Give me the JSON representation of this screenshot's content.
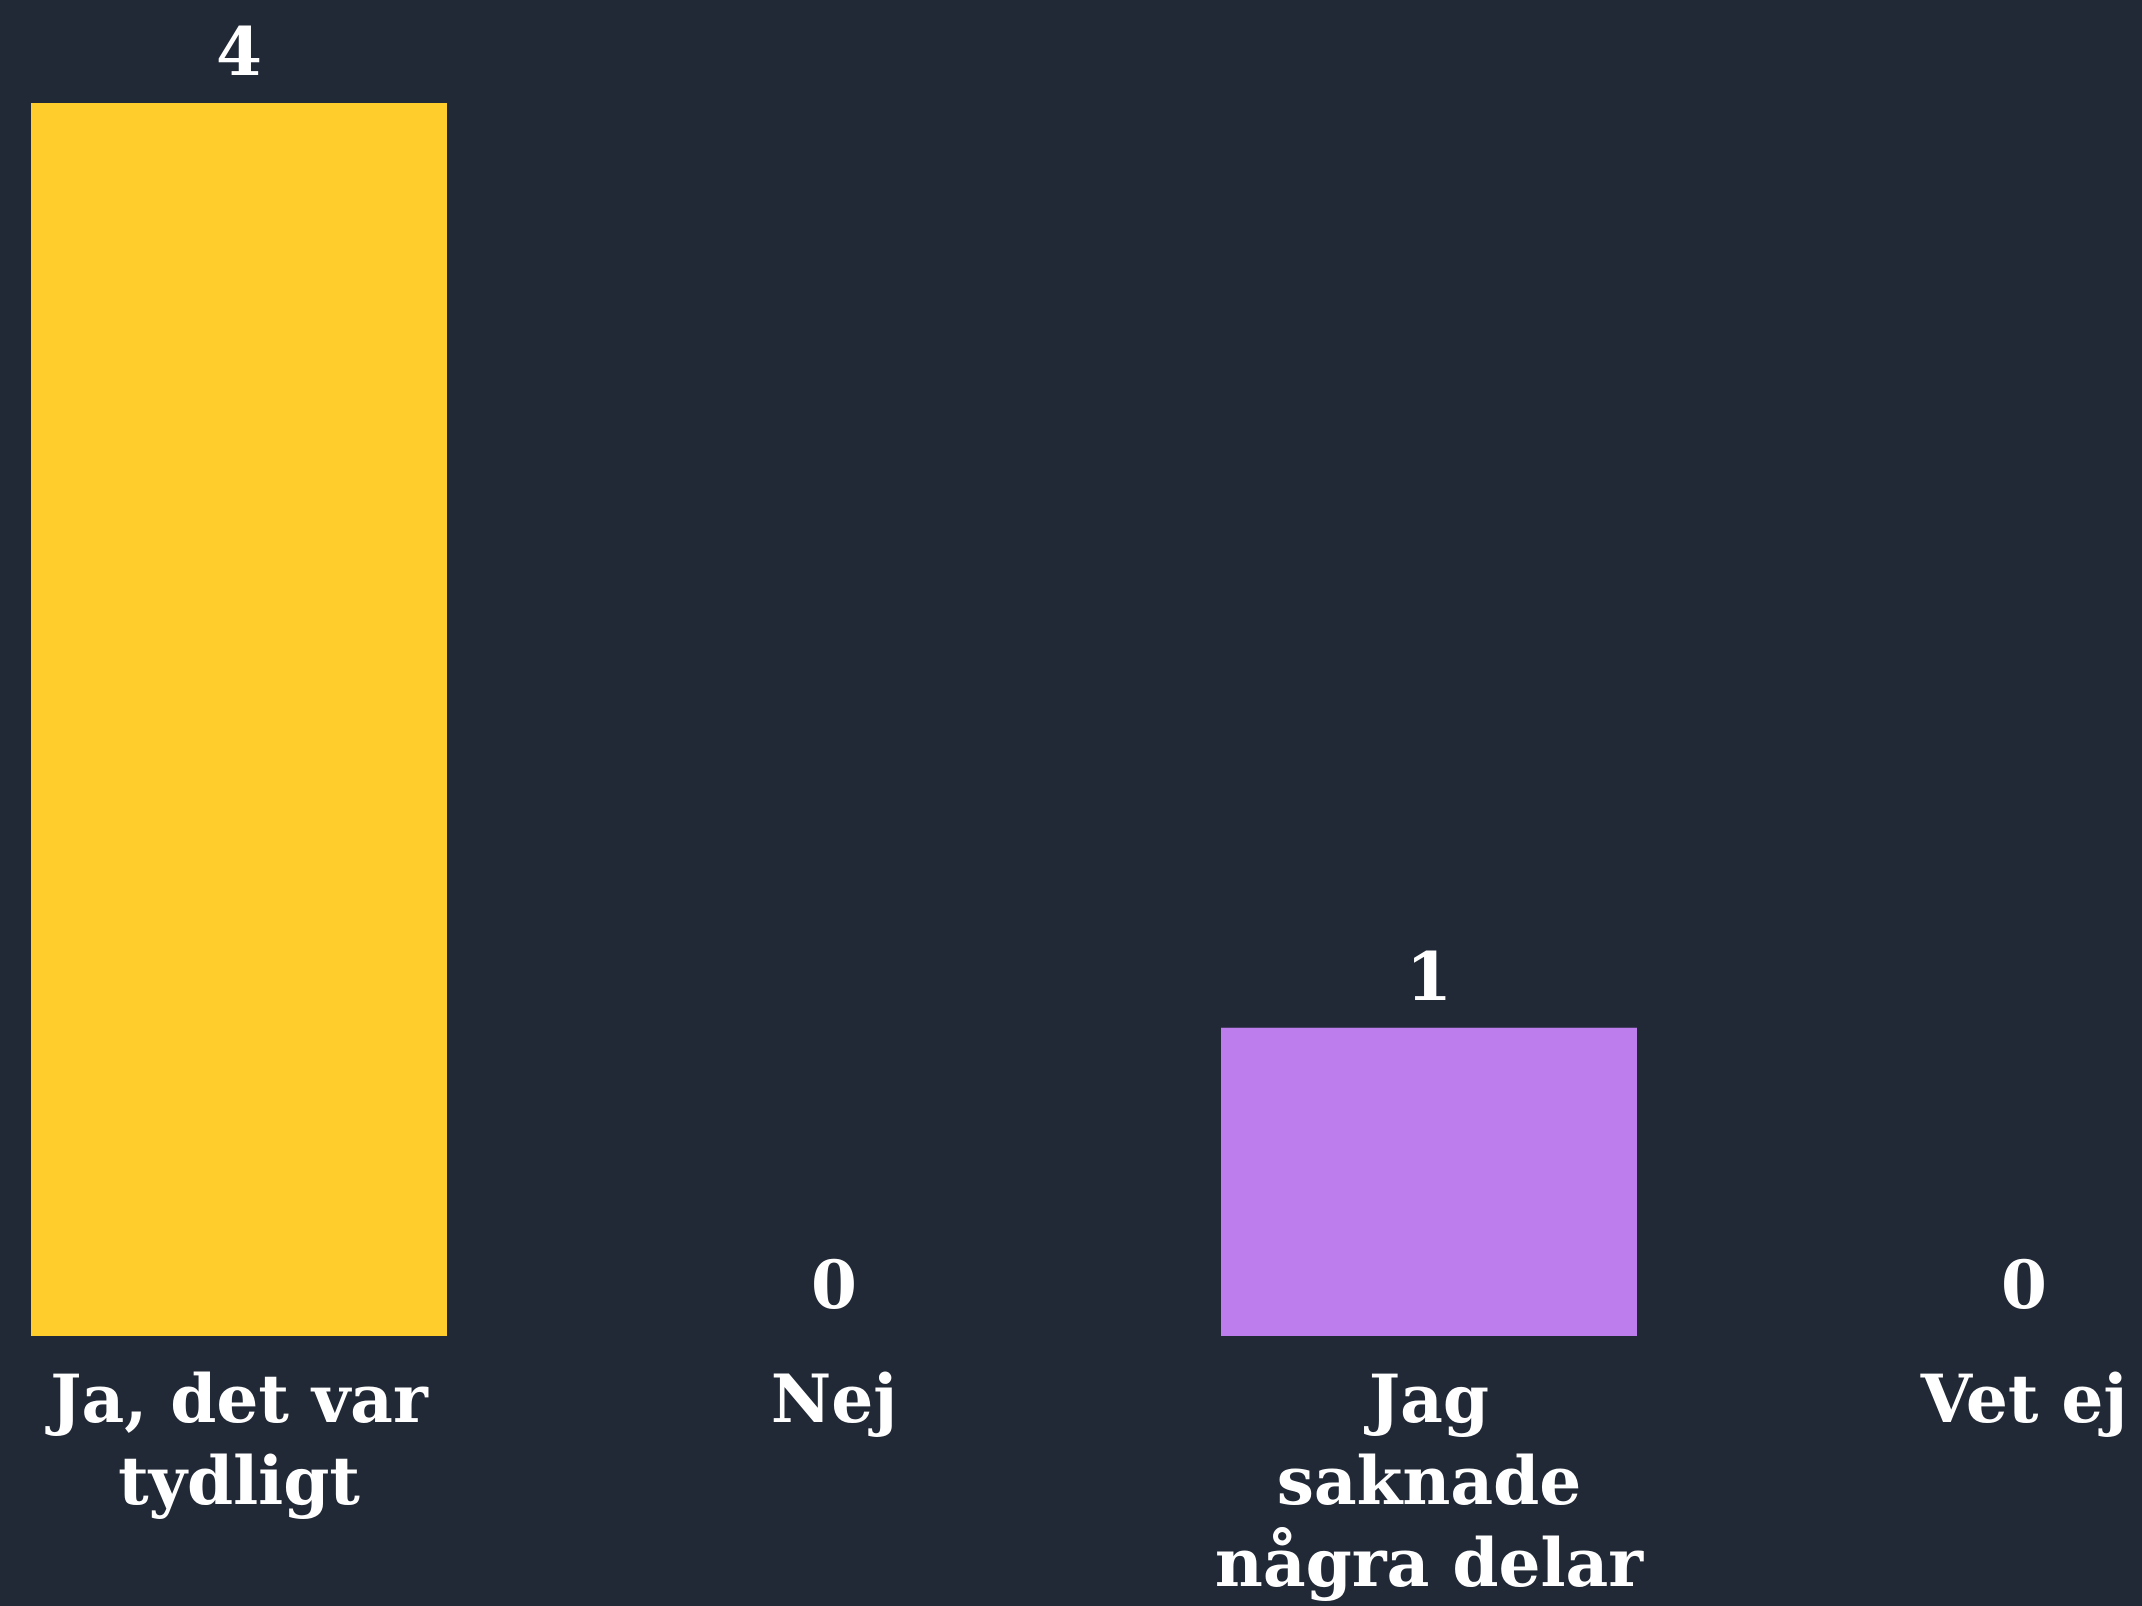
{
  "chart_data": {
    "type": "bar",
    "categories": [
      "Ja, det var tydligt",
      "Nej",
      "Jag saknade några delar",
      "Vet ej"
    ],
    "category_label_lines": [
      [
        "Ja, det var",
        "tydligt"
      ],
      [
        "Nej"
      ],
      [
        "Jag",
        "saknade",
        "några delar"
      ],
      [
        "Vet ej"
      ]
    ],
    "values": [
      4,
      0,
      1,
      0
    ],
    "bar_colors": [
      "#ffcd2c",
      "#ffcd2c",
      "#bd7ded",
      "#bd7ded"
    ],
    "ylim": [
      0,
      4
    ],
    "grid": false,
    "legend": "none",
    "background": "#212936",
    "text_color": "#ffffff"
  }
}
